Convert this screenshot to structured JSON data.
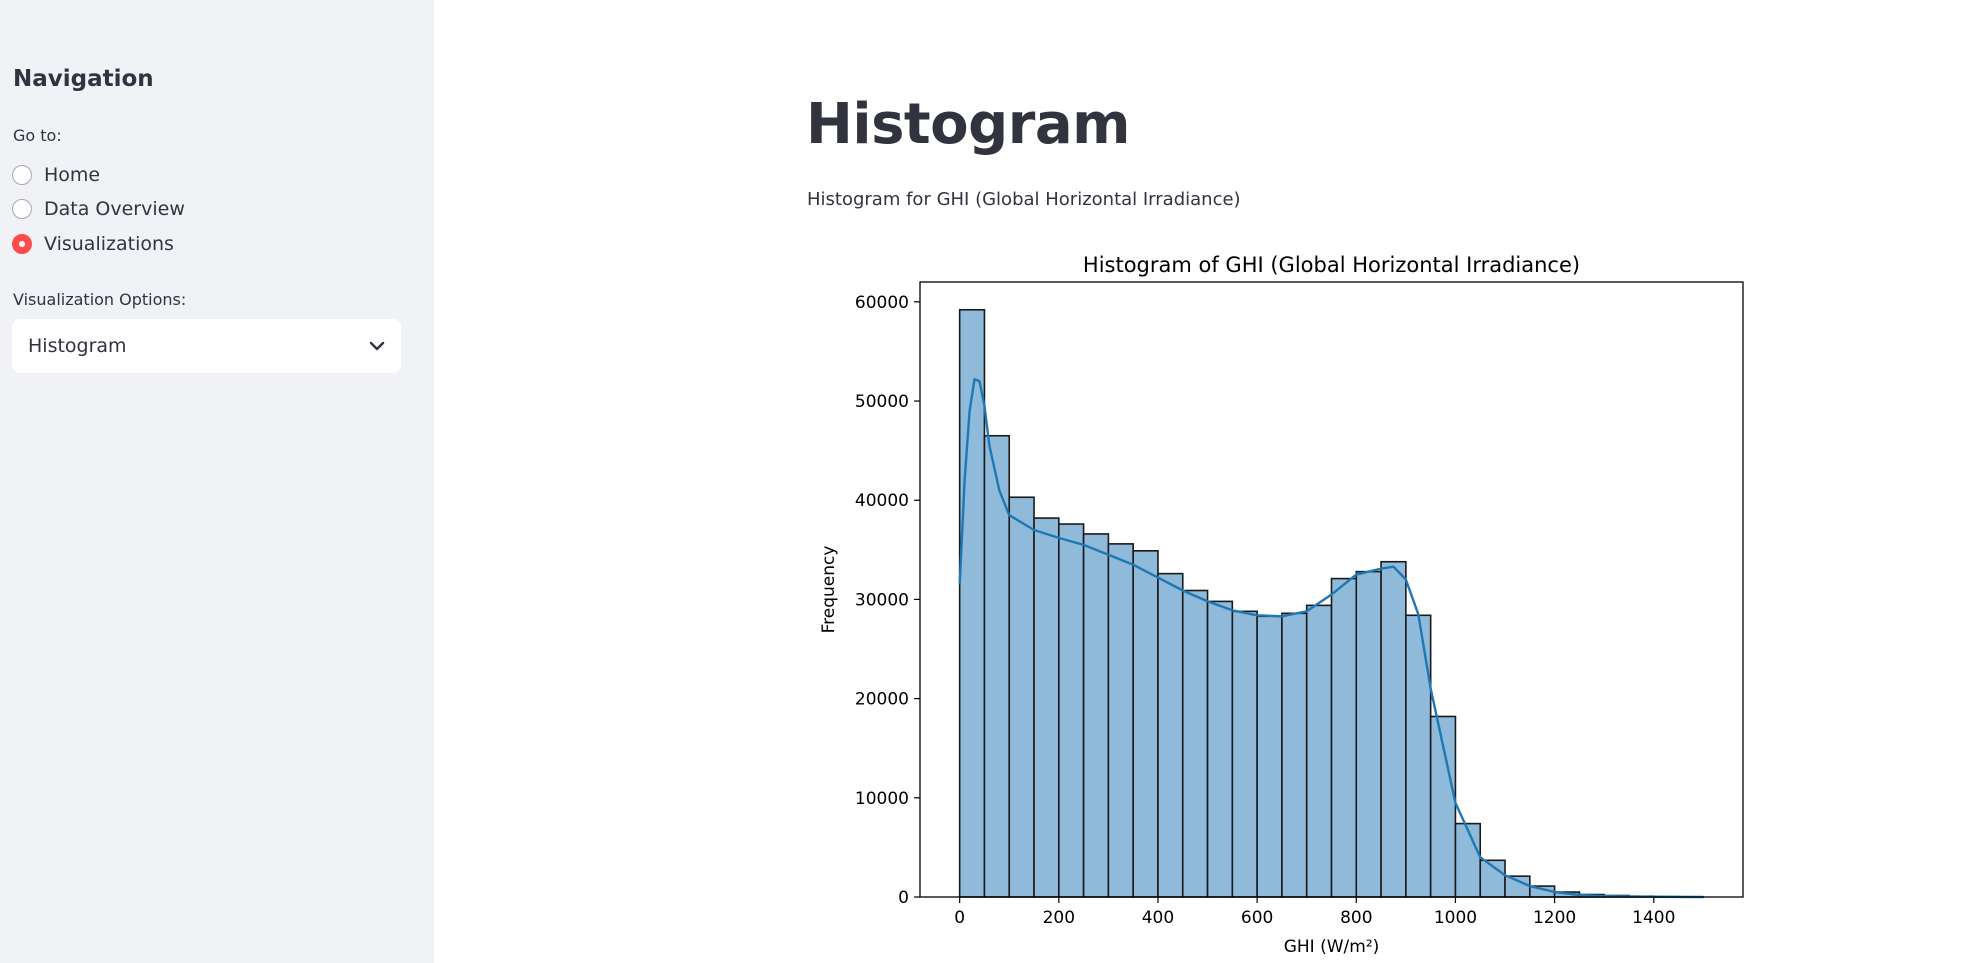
{
  "sidebar": {
    "title": "Navigation",
    "goto_label": "Go to:",
    "radio_options": [
      {
        "label": "Home",
        "selected": false
      },
      {
        "label": "Data Overview",
        "selected": false
      },
      {
        "label": "Visualizations",
        "selected": true
      }
    ],
    "vis_options_label": "Visualization Options:",
    "vis_select_value": "Histogram"
  },
  "main": {
    "title": "Histogram",
    "caption": "Histogram for GHI (Global Horizontal Irradiance)"
  },
  "colors": {
    "accent": "#ff4b4b",
    "bar_fill": "#8fbad9",
    "kde_line": "#1f77b4"
  },
  "chart_data": {
    "type": "bar",
    "title": "Histogram of GHI (Global Horizontal Irradiance)",
    "xlabel": "GHI (W/m²)",
    "ylabel": "Frequency",
    "xlim": [
      -80,
      1580
    ],
    "ylim": [
      0,
      62000
    ],
    "xticks": [
      0,
      200,
      400,
      600,
      800,
      1000,
      1200,
      1400
    ],
    "yticks": [
      0,
      10000,
      20000,
      30000,
      40000,
      50000,
      60000
    ],
    "bin_width": 50,
    "bin_starts": [
      0,
      50,
      100,
      150,
      200,
      250,
      300,
      350,
      400,
      450,
      500,
      550,
      600,
      650,
      700,
      750,
      800,
      850,
      900,
      950,
      1000,
      1050,
      1100,
      1150,
      1200,
      1250,
      1300,
      1350,
      1400,
      1450
    ],
    "values": [
      59200,
      46500,
      40300,
      38200,
      37600,
      36600,
      35600,
      34900,
      32600,
      30900,
      29800,
      28800,
      28300,
      28600,
      29400,
      32100,
      32800,
      33800,
      28400,
      18200,
      7400,
      3700,
      2100,
      1100,
      500,
      250,
      150,
      80,
      40,
      20
    ],
    "kde": {
      "name": "",
      "x": [
        0,
        10,
        20,
        30,
        40,
        50,
        60,
        80,
        100,
        150,
        200,
        250,
        300,
        350,
        400,
        450,
        500,
        550,
        600,
        650,
        700,
        750,
        800,
        850,
        875,
        900,
        925,
        950,
        1000,
        1050,
        1100,
        1150,
        1200,
        1250,
        1300,
        1400,
        1500
      ],
      "y": [
        31500,
        42000,
        49000,
        52200,
        52000,
        49500,
        45500,
        41000,
        38500,
        37000,
        36200,
        35500,
        34500,
        33500,
        32200,
        30900,
        29800,
        28900,
        28400,
        28300,
        28800,
        30500,
        32500,
        33100,
        33300,
        32000,
        28500,
        21000,
        9500,
        4000,
        2200,
        1100,
        500,
        200,
        90,
        20,
        0
      ]
    }
  }
}
